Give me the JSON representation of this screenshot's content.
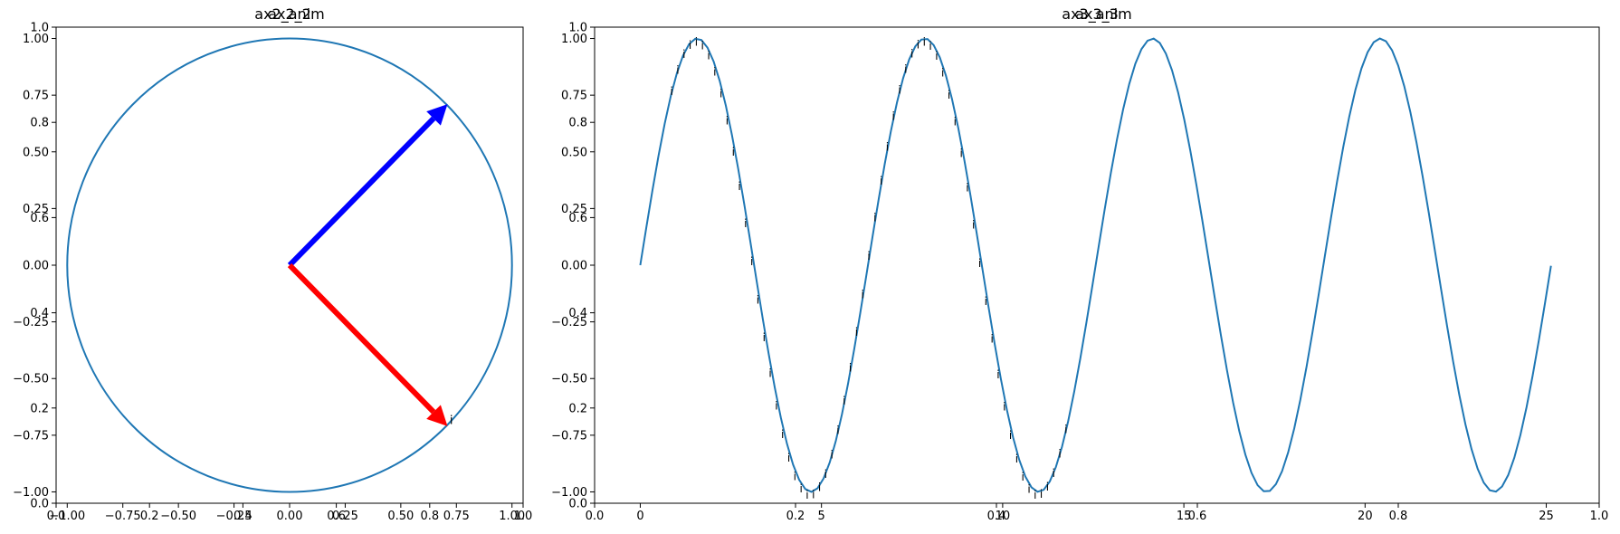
{
  "figure": {
    "background": "#ffffff"
  },
  "chart_data": [
    {
      "type": "line",
      "title_overlap": [
        "ax2_2",
        "ax2_anim"
      ],
      "xlim": [
        -1.05,
        1.05
      ],
      "ylim": [
        -1.05,
        1.05
      ],
      "xticks": [
        -1.0,
        -0.75,
        -0.5,
        -0.25,
        0.0,
        0.25,
        0.5,
        0.75,
        1.0
      ],
      "xtick_labels": [
        "−1.00",
        "−0.75",
        "−0.50",
        "−0.25",
        "0.00",
        "0.25",
        "0.50",
        "0.75",
        "1.00"
      ],
      "yticks": [
        -1.0,
        -0.75,
        -0.5,
        -0.25,
        0.0,
        0.25,
        0.5,
        0.75,
        1.0
      ],
      "ytick_labels": [
        "−1.00",
        "−0.75",
        "−0.50",
        "−0.25",
        "0.00",
        "0.25",
        "0.50",
        "0.75",
        "1.00"
      ],
      "overlay_axis": {
        "ticks": [
          0.0,
          0.2,
          0.4,
          0.6,
          0.8,
          1.0
        ],
        "tick_labels": [
          "0.0",
          "0.2",
          "0.4",
          "0.6",
          "0.8",
          "1.0"
        ]
      },
      "circle": {
        "center": [
          0,
          0
        ],
        "radius": 1.0,
        "color": "#1f77b4"
      },
      "arrows": [
        {
          "from": [
            0,
            0
          ],
          "to": [
            0.71,
            0.71
          ],
          "color": "#0000ff"
        },
        {
          "from": [
            0,
            0
          ],
          "to": [
            0.71,
            -0.71
          ],
          "color": "#ff0000"
        }
      ],
      "point_label": {
        "text": "i",
        "x": 0.72,
        "y": -0.7
      }
    },
    {
      "type": "line",
      "title_overlap": [
        "ax3_3",
        "ax3_anim"
      ],
      "xlim": [
        -1.26,
        26.46
      ],
      "ylim": [
        -1.05,
        1.05
      ],
      "xticks": [
        0,
        5,
        10,
        15,
        20,
        25
      ],
      "xtick_labels": [
        "0",
        "5",
        "10",
        "15",
        "20",
        "25"
      ],
      "yticks": [
        -1.0,
        -0.75,
        -0.5,
        -0.25,
        0.0,
        0.25,
        0.5,
        0.75,
        1.0
      ],
      "ytick_labels": [
        "−1.00",
        "−0.75",
        "−0.50",
        "−0.25",
        "0.00",
        "0.25",
        "0.50",
        "0.75",
        "1.00"
      ],
      "overlay_axis": {
        "ticks": [
          0.0,
          0.2,
          0.4,
          0.6,
          0.8,
          1.0
        ],
        "tick_labels": [
          "0.0",
          "0.2",
          "0.4",
          "0.6",
          "0.8",
          "1.0"
        ]
      },
      "series": [
        {
          "function": "sin(x)",
          "x_range": [
            0,
            25.13
          ],
          "points": 150,
          "color": "#1f77b4"
        }
      ],
      "point_labels": {
        "text": "i",
        "x_range": [
          0.9,
          11.8
        ],
        "step": 0.17
      }
    }
  ]
}
